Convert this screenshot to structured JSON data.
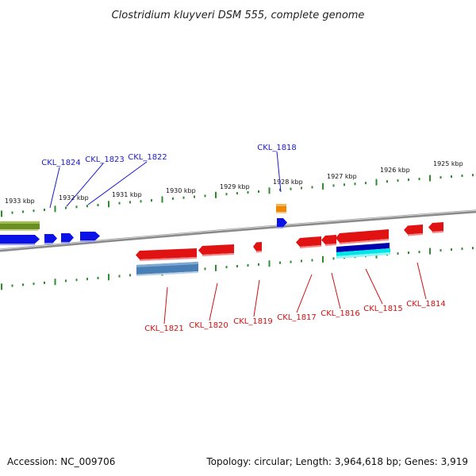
{
  "title": "Clostridium kluyveri DSM 555, complete genome",
  "footer": {
    "accession": "Accession: NC_009706",
    "stats": "Topology: circular; Length: 3,964,618 bp; Genes: 3,919"
  },
  "colors": {
    "backbone": "#8a8a8a",
    "tick": "#2e8b2e",
    "forward_gene": "#0a12e6",
    "reverse_gene": "#e01212",
    "olive_gene": "#6b8e23",
    "orange_gene": "#ee8800",
    "steelblue_gene": "#4a7fb5",
    "cyan_gene": "#00e5e5",
    "navy_gene": "#0000b0",
    "blue_label": "#1a1acc",
    "red_label": "#d01010"
  },
  "kbp_labels": [
    "1933 kbp",
    "1932 kbp",
    "1931 kbp",
    "1930 kbp",
    "1929 kbp",
    "1928 kbp",
    "1927 kbp",
    "1926 kbp",
    "1925 kbp"
  ],
  "forward_genes": [
    {
      "label": "CKL_1824"
    },
    {
      "label": "CKL_1823"
    },
    {
      "label": "CKL_1822"
    },
    {
      "label": "CKL_1818"
    }
  ],
  "reverse_genes": [
    {
      "label": "CKL_1821"
    },
    {
      "label": "CKL_1820"
    },
    {
      "label": "CKL_1819"
    },
    {
      "label": "CKL_1817"
    },
    {
      "label": "CKL_1816"
    },
    {
      "label": "CKL_1815"
    },
    {
      "label": "CKL_1814"
    }
  ]
}
